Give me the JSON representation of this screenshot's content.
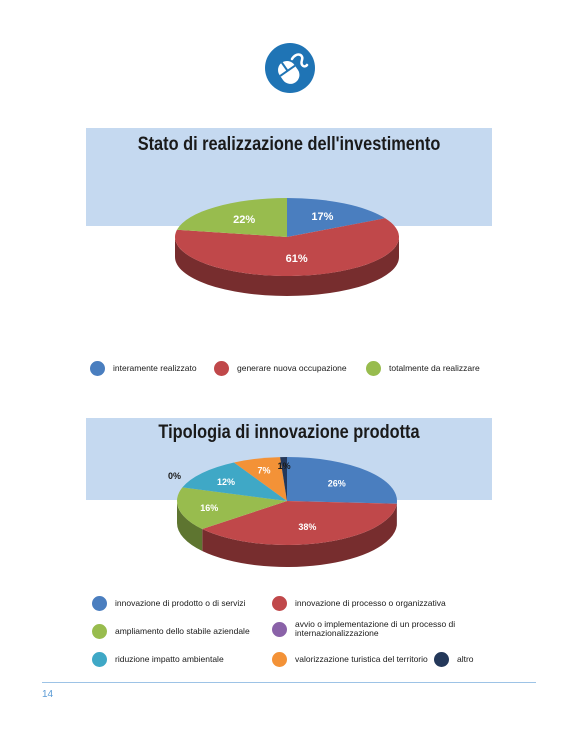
{
  "page": {
    "number": "14"
  },
  "logo": {
    "icon": "mouse-cable-icon",
    "color": "#1f74b5"
  },
  "chart_data": [
    {
      "type": "pie",
      "title": "Stato di realizzazione dell'investimento",
      "slices": [
        {
          "label": "interamente realizzato",
          "value": 17,
          "display": "17%",
          "color": "#4a7ebf"
        },
        {
          "label": "generare nuova occupazione",
          "value": 61,
          "display": "61%",
          "color": "#c0484a"
        },
        {
          "label": "totalmente da realizzare",
          "value": 22,
          "display": "22%",
          "color": "#98bc4e"
        }
      ],
      "legend": [
        "interamente realizzato",
        "generare nuova occupazione",
        "totalmente da realizzare"
      ],
      "legend_position": "bottom"
    },
    {
      "type": "pie",
      "title": "Tipologia di innovazione prodotta",
      "slices": [
        {
          "label": "innovazione di prodotto o di servizi",
          "value": 26,
          "display": "26%",
          "color": "#4a7ebf"
        },
        {
          "label": "innovazione di processo o organizzativa",
          "value": 38,
          "display": "38%",
          "color": "#c0484a"
        },
        {
          "label": "ampliamento dello stabile aziendale",
          "value": 16,
          "display": "16%",
          "color": "#98bc4e"
        },
        {
          "label": "avvio o implementazione di un processo di internazionalizzazione",
          "value": 0,
          "display": "0%",
          "color": "#8a62a8"
        },
        {
          "label": "riduzione impatto ambientale",
          "value": 12,
          "display": "12%",
          "color": "#3fa8c6"
        },
        {
          "label": "valorizzazione turistica del territorio",
          "value": 7,
          "display": "7%",
          "color": "#f39237"
        },
        {
          "label": "altro",
          "value": 1,
          "display": "1%",
          "color": "#24385a"
        }
      ],
      "legend": [
        "innovazione di prodotto o di servizi",
        "innovazione di processo o organizzativa",
        "ampliamento dello stabile aziendale",
        "avvio o implementazione di un processo di internazionalizzazione",
        "riduzione impatto ambientale",
        "valorizzazione turistica del territorio",
        "altro"
      ],
      "legend_position": "bottom"
    }
  ]
}
